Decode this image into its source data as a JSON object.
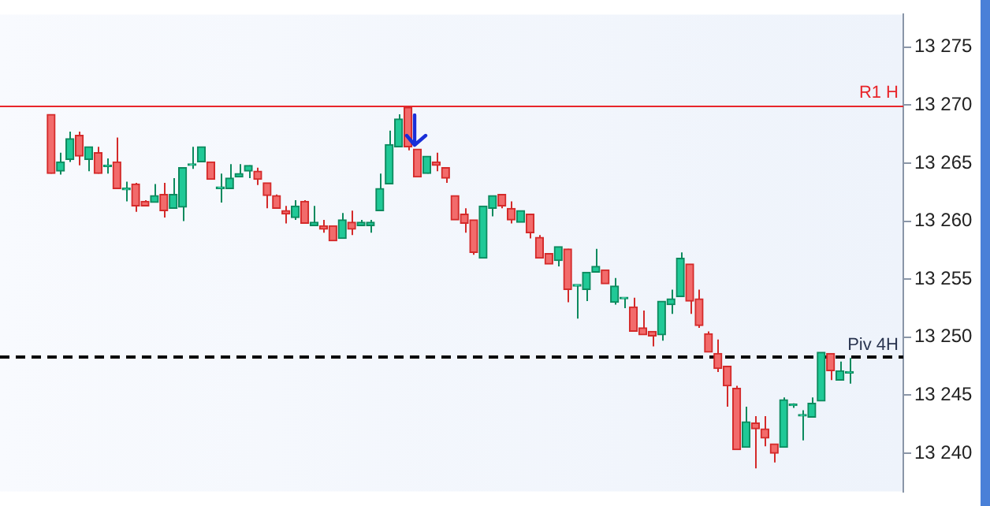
{
  "chart_data": {
    "type": "candlestick",
    "categories": [
      null,
      null,
      null,
      null,
      null,
      null,
      null,
      null,
      null,
      null,
      null,
      null,
      null,
      null,
      null,
      null,
      null,
      null,
      null,
      null,
      null,
      null,
      null,
      null,
      null,
      null,
      null,
      null,
      null,
      null,
      null,
      null,
      null,
      null,
      null,
      null,
      null,
      null,
      null,
      null,
      null,
      null,
      null,
      null,
      null,
      null,
      null,
      null,
      null,
      null,
      null,
      null,
      null,
      null,
      null,
      null,
      null,
      null,
      null,
      null,
      null,
      null,
      null,
      null,
      null,
      null,
      null,
      null,
      null,
      null,
      null,
      null,
      null,
      null,
      null,
      null,
      null,
      null,
      null,
      null,
      null,
      null,
      null,
      null,
      null,
      null
    ],
    "ohlc": [
      [
        13269.2,
        13269.2,
        13264.1,
        13264.1
      ],
      [
        13264.3,
        13265.9,
        13264.0,
        13265.1
      ],
      [
        13265.3,
        13267.7,
        13265.1,
        13267.1
      ],
      [
        13267.4,
        13267.7,
        13264.8,
        13265.6
      ],
      [
        13265.3,
        13266.4,
        13264.3,
        13266.4
      ],
      [
        13265.9,
        13266.4,
        13264.1,
        13264.1
      ],
      [
        13264.7,
        13265.4,
        13264.1,
        13264.8
      ],
      [
        13265.1,
        13267.2,
        13262.8,
        13262.8
      ],
      [
        13262.7,
        13263.4,
        13261.7,
        13262.8
      ],
      [
        13263.2,
        13263.3,
        13260.8,
        13261.3
      ],
      [
        13261.7,
        13261.8,
        13261.3,
        13261.3
      ],
      [
        13261.6,
        13263.2,
        13261.6,
        13262.2
      ],
      [
        13262.3,
        13263.3,
        13260.3,
        13260.9
      ],
      [
        13261.1,
        13263.7,
        13261.1,
        13262.3
      ],
      [
        13261.2,
        13264.6,
        13260.0,
        13264.6
      ],
      [
        13264.8,
        13266.4,
        13264.5,
        13264.9
      ],
      [
        13265.1,
        13266.4,
        13265.1,
        13266.4
      ],
      [
        13265.1,
        13265.1,
        13263.6,
        13263.6
      ],
      [
        13262.8,
        13264.1,
        13261.6,
        13262.9
      ],
      [
        13262.8,
        13264.9,
        13262.8,
        13263.7
      ],
      [
        13263.8,
        13264.9,
        13263.8,
        13264.1
      ],
      [
        13264.3,
        13264.8,
        13263.7,
        13264.8
      ],
      [
        13264.3,
        13264.6,
        13263.1,
        13263.6
      ],
      [
        13263.3,
        13263.3,
        13261.1,
        13262.2
      ],
      [
        13262.2,
        13262.3,
        13261.1,
        13261.1
      ],
      [
        13260.9,
        13261.3,
        13259.8,
        13260.6
      ],
      [
        13260.3,
        13261.8,
        13260.1,
        13261.3
      ],
      [
        13261.7,
        13261.8,
        13259.8,
        13259.8
      ],
      [
        13259.6,
        13261.3,
        13259.6,
        13259.9
      ],
      [
        13259.6,
        13260.1,
        13259.0,
        13259.3
      ],
      [
        13259.6,
        13259.6,
        13258.3,
        13258.3
      ],
      [
        13258.5,
        13260.7,
        13258.5,
        13260.1
      ],
      [
        13259.9,
        13260.9,
        13258.8,
        13259.3
      ],
      [
        13259.6,
        13260.1,
        13259.6,
        13259.9
      ],
      [
        13259.6,
        13260.1,
        13259.0,
        13259.9
      ],
      [
        13260.9,
        13264.1,
        13260.9,
        13262.8
      ],
      [
        13263.2,
        13267.8,
        13263.2,
        13266.6
      ],
      [
        13266.4,
        13269.2,
        13266.4,
        13268.8
      ],
      [
        13269.8,
        13269.9,
        13266.1,
        13266.4
      ],
      [
        13266.2,
        13266.2,
        13263.8,
        13263.8
      ],
      [
        13264.1,
        13265.6,
        13264.1,
        13265.6
      ],
      [
        13265.1,
        13265.9,
        13264.3,
        13264.8
      ],
      [
        13264.6,
        13264.6,
        13263.3,
        13263.7
      ],
      [
        13262.2,
        13262.2,
        13260.1,
        13260.1
      ],
      [
        13260.6,
        13261.1,
        13259.0,
        13259.8
      ],
      [
        13260.1,
        13260.1,
        13257.1,
        13257.3
      ],
      [
        13256.8,
        13261.3,
        13256.8,
        13261.3
      ],
      [
        13261.1,
        13262.2,
        13260.4,
        13262.2
      ],
      [
        13262.3,
        13262.3,
        13261.1,
        13261.3
      ],
      [
        13261.1,
        13261.7,
        13259.8,
        13260.1
      ],
      [
        13259.9,
        13260.9,
        13259.9,
        13260.9
      ],
      [
        13260.6,
        13260.6,
        13258.5,
        13259.0
      ],
      [
        13258.6,
        13258.8,
        13256.8,
        13256.8
      ],
      [
        13257.2,
        13257.2,
        13256.3,
        13256.3
      ],
      [
        13256.6,
        13257.8,
        13256.1,
        13257.8
      ],
      [
        13257.6,
        13257.6,
        13253.0,
        13254.1
      ],
      [
        13254.4,
        13254.5,
        13251.6,
        13254.5
      ],
      [
        13254.1,
        13255.6,
        13253.1,
        13255.6
      ],
      [
        13255.6,
        13257.6,
        13255.6,
        13256.1
      ],
      [
        13255.8,
        13255.8,
        13254.6,
        13254.6
      ],
      [
        13253.0,
        13255.1,
        13252.8,
        13254.4
      ],
      [
        13253.3,
        13253.4,
        13252.5,
        13253.4
      ],
      [
        13252.6,
        13253.4,
        13250.5,
        13250.5
      ],
      [
        13250.8,
        13252.3,
        13250.2,
        13250.2
      ],
      [
        13250.5,
        13250.5,
        13249.2,
        13250.1
      ],
      [
        13250.2,
        13253.1,
        13249.7,
        13253.1
      ],
      [
        13252.8,
        13254.1,
        13252.0,
        13253.3
      ],
      [
        13253.5,
        13257.3,
        13253.5,
        13256.8
      ],
      [
        13256.3,
        13256.3,
        13252.0,
        13253.1
      ],
      [
        13253.3,
        13254.1,
        13250.8,
        13251.0
      ],
      [
        13250.3,
        13250.5,
        13248.7,
        13248.7
      ],
      [
        13248.6,
        13249.8,
        13247.0,
        13247.3
      ],
      [
        13247.5,
        13247.5,
        13244.0,
        13245.8
      ],
      [
        13245.6,
        13245.8,
        13240.3,
        13240.3
      ],
      [
        13240.5,
        13244.0,
        13240.5,
        13242.7
      ],
      [
        13242.6,
        13243.2,
        13238.7,
        13242.1
      ],
      [
        13242.1,
        13243.2,
        13240.6,
        13241.3
      ],
      [
        13240.8,
        13240.8,
        13239.2,
        13240.0
      ],
      [
        13240.5,
        13244.8,
        13240.5,
        13244.6
      ],
      [
        13244.1,
        13244.3,
        13243.9,
        13244.2
      ],
      [
        13243.2,
        13243.7,
        13241.1,
        13243.3
      ],
      [
        13243.1,
        13244.8,
        13243.1,
        13244.3
      ],
      [
        13244.5,
        13248.7,
        13244.5,
        13248.7
      ],
      [
        13248.6,
        13248.6,
        13246.3,
        13247.1
      ],
      [
        13246.3,
        13247.9,
        13246.3,
        13247.1
      ],
      [
        13246.9,
        13248.2,
        13246.0,
        13247.0
      ]
    ],
    "ylim": [
      13236.7,
      13277.8
    ],
    "yticks": [
      {
        "value": 13240,
        "label": "13 240"
      },
      {
        "value": 13245,
        "label": "13 245"
      },
      {
        "value": 13250,
        "label": "13 250"
      },
      {
        "value": 13255,
        "label": "13 255"
      },
      {
        "value": 13260,
        "label": "13 260"
      },
      {
        "value": 13265,
        "label": "13 265"
      },
      {
        "value": 13270,
        "label": "13 270"
      },
      {
        "value": 13275,
        "label": "13 275"
      }
    ],
    "ref_lines": [
      {
        "axis": "y",
        "value": 13270,
        "label": "R1 H",
        "color": "#e8262b",
        "line_style": "solid"
      },
      {
        "axis": "y",
        "value": 13248.3,
        "label": "Piv 4H",
        "color": "#000000",
        "line_style": "dashed"
      }
    ],
    "grid": false,
    "legend": false,
    "tick_labels": "y"
  }
}
